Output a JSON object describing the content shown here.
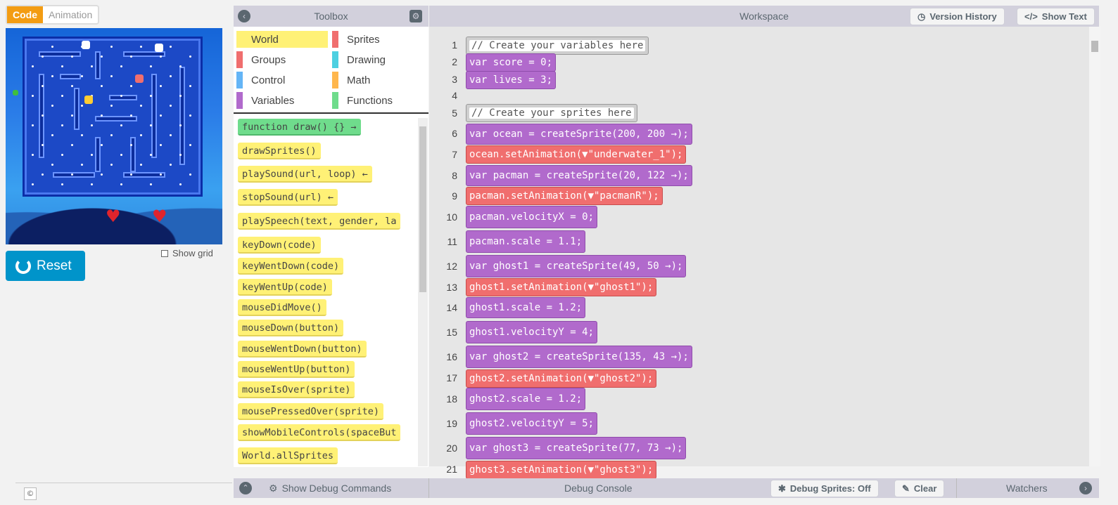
{
  "mode_toggle": {
    "code": "Code",
    "animation": "Animation"
  },
  "stage": {
    "show_grid_label": "Show grid",
    "reset_label": "Reset"
  },
  "toolbox": {
    "title": "Toolbox",
    "categories": [
      {
        "label": "World",
        "color": "#fff176",
        "selected": true
      },
      {
        "label": "Sprites",
        "color": "#f06e6e"
      },
      {
        "label": "Groups",
        "color": "#f06e6e"
      },
      {
        "label": "Drawing",
        "color": "#4dd0e1"
      },
      {
        "label": "Control",
        "color": "#64b5f6"
      },
      {
        "label": "Math",
        "color": "#ffb74d"
      },
      {
        "label": "Variables",
        "color": "#b16acc"
      },
      {
        "label": "Functions",
        "color": "#6fdc8c"
      }
    ],
    "blocks": [
      {
        "label": "function draw() {} →",
        "color": "#6fdc8c"
      },
      {
        "label": "drawSprites()"
      },
      {
        "label": "playSound(url, loop) ←"
      },
      {
        "label": "stopSound(url) ←"
      },
      {
        "label": "playSpeech(text, gender, la"
      },
      {
        "label": "keyDown(code)"
      },
      {
        "label": "keyWentDown(code)"
      },
      {
        "label": "keyWentUp(code)"
      },
      {
        "label": "mouseDidMove()"
      },
      {
        "label": "mouseDown(button)"
      },
      {
        "label": "mouseWentDown(button)"
      },
      {
        "label": "mouseWentUp(button)"
      },
      {
        "label": "mouseIsOver(sprite)"
      },
      {
        "label": "mousePressedOver(sprite)"
      },
      {
        "label": "showMobileControls(spaceBut"
      },
      {
        "label": "World.allSprites"
      }
    ]
  },
  "workspace": {
    "title": "Workspace",
    "version_history": "Version History",
    "show_text": "Show Text",
    "lines": [
      {
        "n": "1",
        "text": "// Create your variables here"
      },
      {
        "n": "2",
        "text": "var score = 0;"
      },
      {
        "n": "3",
        "text": "var lives = 3;"
      },
      {
        "n": "4",
        "text": ""
      },
      {
        "n": "5",
        "text": "// Create your sprites here"
      },
      {
        "n": "6",
        "text": "var ocean = createSprite(200, 200 →);"
      },
      {
        "n": "7",
        "text": "ocean.setAnimation(▼\"underwater_1\");"
      },
      {
        "n": "8",
        "text": "var pacman = createSprite(20, 122 →);"
      },
      {
        "n": "9",
        "text": "pacman.setAnimation(▼\"pacmanR\");"
      },
      {
        "n": "10",
        "text": "pacman.velocityX = 0;"
      },
      {
        "n": "11",
        "text": "pacman.scale = 1.1;"
      },
      {
        "n": "12",
        "text": "var ghost1 = createSprite(49, 50 →);"
      },
      {
        "n": "13",
        "text": "ghost1.setAnimation(▼\"ghost1\");"
      },
      {
        "n": "14",
        "text": "ghost1.scale = 1.2;"
      },
      {
        "n": "15",
        "text": "ghost1.velocityY = 4;"
      },
      {
        "n": "16",
        "text": "var ghost2 = createSprite(135, 43 →);"
      },
      {
        "n": "17",
        "text": "ghost2.setAnimation(▼\"ghost2\");"
      },
      {
        "n": "18",
        "text": "ghost2.scale = 1.2;"
      },
      {
        "n": "19",
        "text": "ghost2.velocityY = 5;"
      },
      {
        "n": "20",
        "text": "var ghost3 = createSprite(77, 73 →);"
      },
      {
        "n": "21",
        "text": "ghost3.setAnimation(▼\"ghost3\");"
      }
    ]
  },
  "debug": {
    "show_debug_commands": "Show Debug Commands",
    "console": "Debug Console",
    "debug_sprites": "Debug Sprites: Off",
    "clear": "Clear",
    "watchers": "Watchers"
  }
}
